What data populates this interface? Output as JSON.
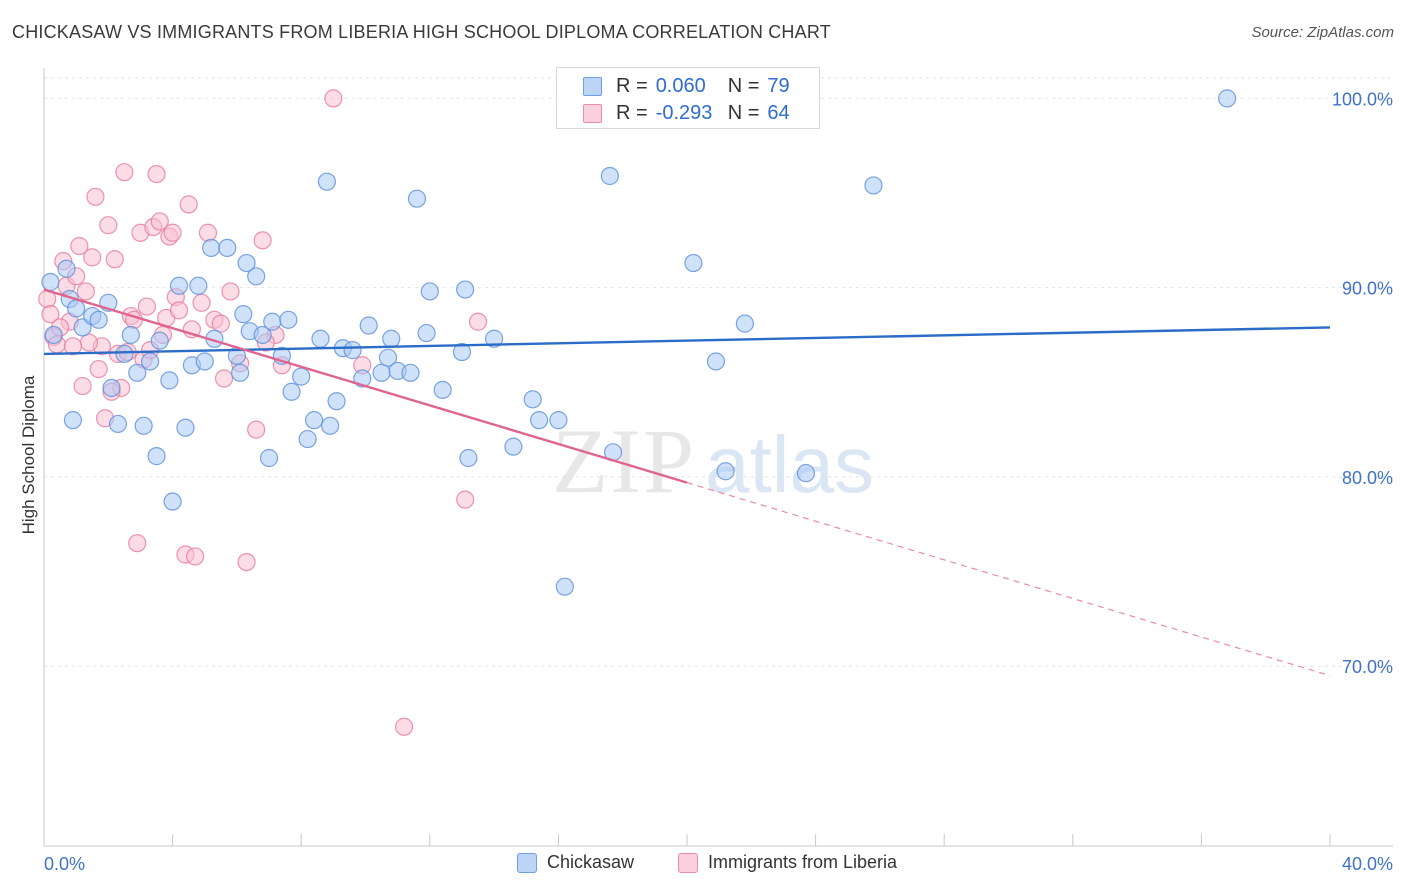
{
  "title": "CHICKASAW VS IMMIGRANTS FROM LIBERIA HIGH SCHOOL DIPLOMA CORRELATION CHART",
  "source": "Source: ZipAtlas.com",
  "legend": {
    "r_label": "R =",
    "n_label": "N =",
    "series": [
      {
        "name": "Chickasaw",
        "r": "0.060",
        "n": "79",
        "fill": "#a9c9f5",
        "stroke": "#5b8fd9"
      },
      {
        "name": "Immigrants from Liberia",
        "r": "-0.293",
        "n": "64",
        "fill": "#f9bfd0",
        "stroke": "#e8799c"
      }
    ]
  },
  "watermark": {
    "part1": "ZIP",
    "part2": "atlas"
  },
  "chart_data": {
    "type": "scatter",
    "title": "CHICKASAW VS IMMIGRANTS FROM LIBERIA HIGH SCHOOL DIPLOMA CORRELATION CHART",
    "xlabel": "",
    "ylabel": "High School Diploma",
    "xlim": [
      0,
      40
    ],
    "ylim": [
      60.5,
      101.5
    ],
    "x_tick_labels": [
      "0.0%",
      "40.0%"
    ],
    "y_ticks": [
      70,
      80,
      90,
      100
    ],
    "y_tick_labels": [
      "70.0%",
      "80.0%",
      "90.0%",
      "100.0%"
    ],
    "grid": true,
    "series": [
      {
        "name": "Chickasaw",
        "color": "#5b8fd9",
        "fill": "#a9c9f5",
        "trend": {
          "x0": 0,
          "y0": 86.5,
          "x1": 40,
          "y1": 87.9,
          "solid_until": 40
        },
        "points": [
          [
            0.2,
            90.3
          ],
          [
            0.3,
            87.5
          ],
          [
            0.7,
            91.0
          ],
          [
            0.8,
            89.4
          ],
          [
            1.0,
            88.9
          ],
          [
            1.2,
            87.9
          ],
          [
            1.5,
            88.5
          ],
          [
            1.7,
            88.3
          ],
          [
            2.0,
            89.2
          ],
          [
            2.1,
            84.7
          ],
          [
            2.3,
            82.8
          ],
          [
            2.5,
            86.5
          ],
          [
            2.7,
            87.5
          ],
          [
            2.9,
            85.5
          ],
          [
            3.1,
            82.7
          ],
          [
            3.3,
            86.1
          ],
          [
            3.5,
            81.1
          ],
          [
            3.6,
            87.2
          ],
          [
            3.9,
            85.1
          ],
          [
            4.0,
            78.7
          ],
          [
            4.2,
            90.1
          ],
          [
            4.4,
            82.6
          ],
          [
            4.6,
            85.9
          ],
          [
            4.8,
            90.1
          ],
          [
            5.0,
            86.1
          ],
          [
            5.2,
            92.1
          ],
          [
            5.3,
            87.3
          ],
          [
            5.7,
            92.1
          ],
          [
            6.0,
            86.4
          ],
          [
            6.1,
            85.5
          ],
          [
            6.2,
            88.6
          ],
          [
            6.4,
            87.7
          ],
          [
            6.6,
            90.6
          ],
          [
            6.8,
            87.5
          ],
          [
            7.0,
            81.0
          ],
          [
            7.1,
            88.2
          ],
          [
            7.4,
            86.4
          ],
          [
            7.6,
            88.3
          ],
          [
            7.7,
            84.5
          ],
          [
            8.0,
            85.3
          ],
          [
            8.2,
            82.0
          ],
          [
            8.4,
            83.0
          ],
          [
            8.6,
            87.3
          ],
          [
            8.8,
            95.6
          ],
          [
            8.9,
            82.7
          ],
          [
            9.1,
            84.0
          ],
          [
            9.3,
            86.8
          ],
          [
            9.6,
            86.7
          ],
          [
            9.9,
            85.2
          ],
          [
            10.1,
            88.0
          ],
          [
            10.5,
            85.5
          ],
          [
            10.7,
            86.3
          ],
          [
            10.8,
            87.3
          ],
          [
            11.0,
            85.6
          ],
          [
            11.4,
            85.5
          ],
          [
            11.6,
            94.7
          ],
          [
            11.9,
            87.6
          ],
          [
            12.0,
            89.8
          ],
          [
            12.4,
            84.6
          ],
          [
            13.0,
            86.6
          ],
          [
            13.1,
            89.9
          ],
          [
            13.2,
            81.0
          ],
          [
            14.0,
            87.3
          ],
          [
            14.6,
            81.6
          ],
          [
            15.2,
            84.1
          ],
          [
            15.4,
            83.0
          ],
          [
            16.0,
            83.0
          ],
          [
            16.2,
            74.2
          ],
          [
            17.6,
            95.9
          ],
          [
            17.7,
            81.3
          ],
          [
            20.2,
            91.3
          ],
          [
            20.9,
            86.1
          ],
          [
            21.2,
            80.3
          ],
          [
            21.8,
            88.1
          ],
          [
            23.7,
            80.2
          ],
          [
            25.8,
            95.4
          ],
          [
            36.8,
            100.0
          ],
          [
            0.9,
            83.0
          ],
          [
            6.3,
            91.3
          ]
        ]
      },
      {
        "name": "Immigrants from Liberia",
        "color": "#e8799c",
        "fill": "#f9bfd0",
        "trend": {
          "x0": 0,
          "y0": 89.9,
          "x1": 40,
          "y1": 69.5,
          "solid_until": 20
        },
        "points": [
          [
            0.1,
            89.4
          ],
          [
            0.2,
            88.6
          ],
          [
            0.3,
            87.4
          ],
          [
            0.4,
            87.0
          ],
          [
            0.6,
            91.4
          ],
          [
            0.7,
            90.1
          ],
          [
            0.8,
            88.2
          ],
          [
            1.0,
            90.6
          ],
          [
            1.1,
            92.2
          ],
          [
            1.2,
            84.8
          ],
          [
            1.3,
            89.8
          ],
          [
            1.5,
            91.6
          ],
          [
            1.6,
            94.8
          ],
          [
            1.7,
            85.7
          ],
          [
            1.8,
            86.9
          ],
          [
            1.9,
            83.1
          ],
          [
            2.0,
            93.3
          ],
          [
            2.2,
            91.5
          ],
          [
            2.3,
            86.5
          ],
          [
            2.4,
            84.7
          ],
          [
            2.5,
            96.1
          ],
          [
            2.6,
            86.6
          ],
          [
            2.7,
            88.5
          ],
          [
            2.8,
            88.3
          ],
          [
            2.9,
            76.5
          ],
          [
            3.0,
            92.9
          ],
          [
            3.1,
            86.2
          ],
          [
            3.2,
            89.0
          ],
          [
            3.4,
            93.2
          ],
          [
            3.5,
            96.0
          ],
          [
            3.6,
            93.5
          ],
          [
            3.7,
            87.5
          ],
          [
            3.8,
            88.4
          ],
          [
            3.9,
            92.7
          ],
          [
            4.0,
            92.9
          ],
          [
            4.1,
            89.5
          ],
          [
            4.2,
            88.8
          ],
          [
            4.4,
            75.9
          ],
          [
            4.5,
            94.4
          ],
          [
            4.7,
            75.8
          ],
          [
            4.9,
            89.2
          ],
          [
            5.1,
            92.9
          ],
          [
            5.3,
            88.3
          ],
          [
            5.5,
            88.1
          ],
          [
            5.8,
            89.8
          ],
          [
            6.1,
            86.0
          ],
          [
            6.3,
            75.5
          ],
          [
            6.6,
            82.5
          ],
          [
            6.8,
            92.5
          ],
          [
            7.2,
            87.5
          ],
          [
            7.4,
            85.9
          ],
          [
            9.0,
            100.0
          ],
          [
            9.9,
            85.9
          ],
          [
            11.2,
            66.8
          ],
          [
            13.1,
            78.8
          ],
          [
            13.5,
            88.2
          ],
          [
            0.5,
            87.9
          ],
          [
            1.4,
            87.1
          ],
          [
            2.1,
            84.5
          ],
          [
            3.3,
            86.7
          ],
          [
            4.6,
            87.8
          ],
          [
            5.6,
            85.2
          ],
          [
            6.9,
            87.1
          ],
          [
            0.9,
            86.9
          ]
        ]
      }
    ]
  }
}
